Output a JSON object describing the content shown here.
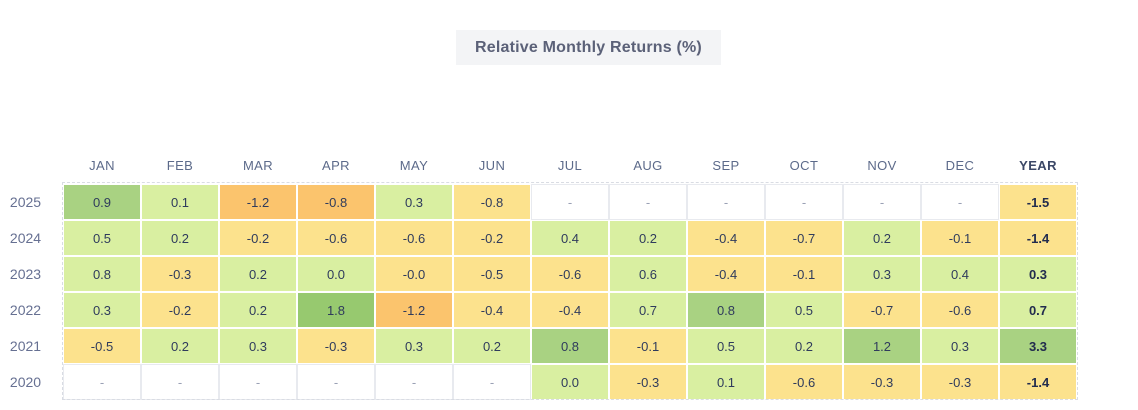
{
  "page": {
    "title": "Relative Monthly Returns (%)"
  },
  "chart_data": {
    "type": "heatmap",
    "title": "Relative Monthly Returns (%)",
    "columns": [
      "JAN",
      "FEB",
      "MAR",
      "APR",
      "MAY",
      "JUN",
      "JUL",
      "AUG",
      "SEP",
      "OCT",
      "NOV",
      "DEC",
      "YEAR"
    ],
    "rows": [
      {
        "year": "2025",
        "values": [
          "0.9",
          "0.1",
          "-1.2",
          "-0.8",
          "0.3",
          "-0.8",
          "-",
          "-",
          "-",
          "-",
          "-",
          "-",
          "-1.5"
        ],
        "levels": [
          "g2",
          "g1",
          "o",
          "o",
          "g1",
          "y",
          "e",
          "e",
          "e",
          "e",
          "e",
          "e",
          "y"
        ]
      },
      {
        "year": "2024",
        "values": [
          "0.5",
          "0.2",
          "-0.2",
          "-0.6",
          "-0.6",
          "-0.2",
          "0.4",
          "0.2",
          "-0.4",
          "-0.7",
          "0.2",
          "-0.1",
          "-1.4"
        ],
        "levels": [
          "g1",
          "g1",
          "y",
          "y",
          "y",
          "y",
          "g1",
          "g1",
          "y",
          "y",
          "g1",
          "y",
          "y"
        ]
      },
      {
        "year": "2023",
        "values": [
          "0.8",
          "-0.3",
          "0.2",
          "0.0",
          "-0.0",
          "-0.5",
          "-0.6",
          "0.6",
          "-0.4",
          "-0.1",
          "0.3",
          "0.4",
          "0.3"
        ],
        "levels": [
          "g1",
          "y",
          "g1",
          "g1",
          "y",
          "y",
          "y",
          "g1",
          "y",
          "y",
          "g1",
          "g1",
          "g1"
        ]
      },
      {
        "year": "2022",
        "values": [
          "0.3",
          "-0.2",
          "0.2",
          "1.8",
          "-1.2",
          "-0.4",
          "-0.4",
          "0.7",
          "0.8",
          "0.5",
          "-0.7",
          "-0.6",
          "0.7"
        ],
        "levels": [
          "g1",
          "y",
          "g1",
          "g3",
          "o",
          "y",
          "y",
          "g1",
          "g2",
          "g1",
          "y",
          "y",
          "g1"
        ]
      },
      {
        "year": "2021",
        "values": [
          "-0.5",
          "0.2",
          "0.3",
          "-0.3",
          "0.3",
          "0.2",
          "0.8",
          "-0.1",
          "0.5",
          "0.2",
          "1.2",
          "0.3",
          "3.3"
        ],
        "levels": [
          "y",
          "g1",
          "g1",
          "y",
          "g1",
          "g1",
          "g2",
          "y",
          "g1",
          "g1",
          "g2",
          "g1",
          "g2"
        ]
      },
      {
        "year": "2020",
        "values": [
          "-",
          "-",
          "-",
          "-",
          "-",
          "-",
          "0.0",
          "-0.3",
          "0.1",
          "-0.6",
          "-0.3",
          "-0.3",
          "-1.4"
        ],
        "levels": [
          "e",
          "e",
          "e",
          "e",
          "e",
          "e",
          "g1",
          "y",
          "g1",
          "y",
          "y",
          "y",
          "y"
        ]
      }
    ],
    "palette": {
      "light_green": "#d9efa1",
      "medium_green": "#a9d282",
      "dark_green": "#97c96f",
      "yellow": "#fce28d",
      "orange": "#fbc46d",
      "empty": "#ffffff"
    },
    "text_colors": {
      "title": "#5b6178",
      "header": "#5c6a8a",
      "cell_value": "#2f3b5c",
      "year_label": "#667092",
      "dash": "#9aa1b5"
    },
    "layout_hints": {
      "legend": "none",
      "grid": "white 2px gaps between cells, dashed light-gray outer border",
      "year_column_bold": true
    }
  }
}
